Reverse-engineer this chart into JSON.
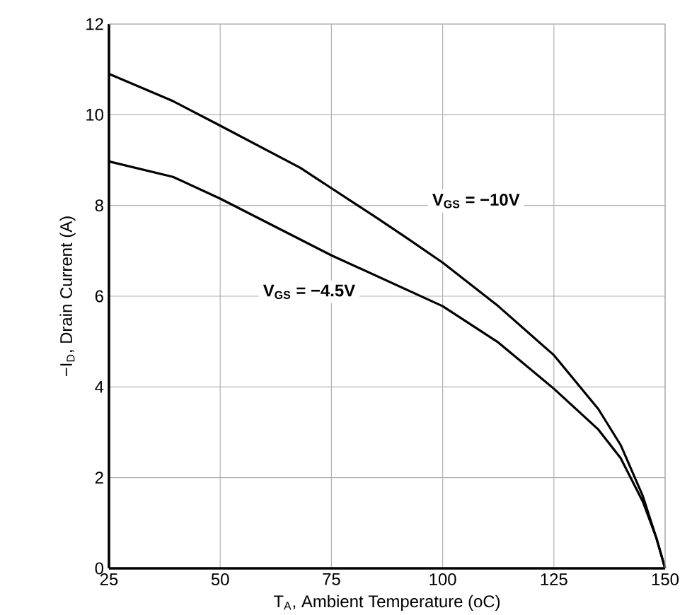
{
  "chart_data": {
    "type": "line",
    "xlabel": "T$_{A}$, Ambient Temperature (oC)",
    "ylabel": "−I$_{D}$, Drain Current (A)",
    "xlim": [
      25,
      150
    ],
    "ylim": [
      0,
      12
    ],
    "xticks": [
      25,
      50,
      75,
      100,
      125,
      150
    ],
    "yticks": [
      0,
      2,
      4,
      6,
      8,
      10,
      12
    ],
    "grid": true,
    "line_style": "solid",
    "marker": "none",
    "series": [
      {
        "color": "#000000",
        "x": [
          25,
          39.4,
          50,
          68,
          75,
          85.3,
          91.7,
          100,
          112.5,
          125,
          135,
          140,
          145,
          148,
          150
        ],
        "values": [
          10.9,
          10.3,
          9.76,
          8.83,
          8.38,
          7.72,
          7.3,
          6.74,
          5.78,
          4.7,
          3.51,
          2.72,
          1.59,
          0.68,
          0
        ]
      },
      {
        "color": "#000000",
        "x": [
          25,
          39.4,
          50,
          75,
          100,
          112.5,
          125,
          135,
          140,
          145,
          148,
          150
        ],
        "values": [
          8.97,
          8.63,
          8.15,
          6.9,
          5.78,
          4.98,
          3.96,
          3.06,
          2.43,
          1.47,
          0.68,
          0
        ]
      }
    ],
    "annotations": [
      "V$_{GS}$ = −10V",
      "V$_{GS}$ = −4.5V"
    ]
  }
}
